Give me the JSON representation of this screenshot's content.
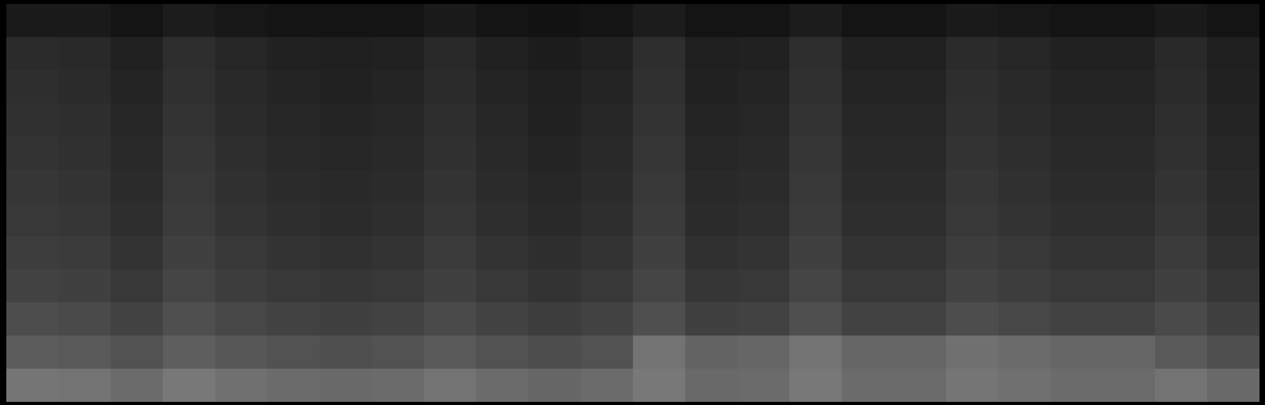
{
  "chart_data": {
    "type": "heatmap",
    "tick_labels": false,
    "zlim": [
      0,
      1
    ],
    "cells": [
      [
        0.1,
        0.1,
        0.08,
        0.11,
        0.09,
        0.08,
        0.08,
        0.08,
        0.1,
        0.08,
        0.07,
        0.08,
        0.11,
        0.08,
        0.08,
        0.11,
        0.08,
        0.08,
        0.1,
        0.09,
        0.08,
        0.08,
        0.1,
        0.08
      ],
      [
        0.17,
        0.16,
        0.13,
        0.18,
        0.15,
        0.13,
        0.12,
        0.13,
        0.16,
        0.13,
        0.11,
        0.13,
        0.18,
        0.12,
        0.13,
        0.18,
        0.13,
        0.13,
        0.17,
        0.15,
        0.13,
        0.13,
        0.16,
        0.12
      ],
      [
        0.18,
        0.17,
        0.14,
        0.19,
        0.16,
        0.14,
        0.13,
        0.14,
        0.17,
        0.14,
        0.12,
        0.14,
        0.19,
        0.13,
        0.14,
        0.19,
        0.14,
        0.14,
        0.18,
        0.16,
        0.14,
        0.14,
        0.17,
        0.13
      ],
      [
        0.19,
        0.18,
        0.15,
        0.2,
        0.17,
        0.15,
        0.14,
        0.15,
        0.18,
        0.15,
        0.13,
        0.15,
        0.2,
        0.14,
        0.15,
        0.2,
        0.15,
        0.15,
        0.19,
        0.17,
        0.15,
        0.15,
        0.18,
        0.14
      ],
      [
        0.2,
        0.19,
        0.16,
        0.21,
        0.18,
        0.16,
        0.15,
        0.16,
        0.19,
        0.16,
        0.14,
        0.16,
        0.21,
        0.15,
        0.16,
        0.21,
        0.16,
        0.16,
        0.2,
        0.18,
        0.16,
        0.16,
        0.19,
        0.15
      ],
      [
        0.21,
        0.2,
        0.17,
        0.22,
        0.19,
        0.17,
        0.16,
        0.17,
        0.2,
        0.17,
        0.15,
        0.17,
        0.22,
        0.16,
        0.17,
        0.22,
        0.17,
        0.17,
        0.21,
        0.19,
        0.17,
        0.17,
        0.2,
        0.16
      ],
      [
        0.22,
        0.21,
        0.18,
        0.23,
        0.2,
        0.18,
        0.17,
        0.18,
        0.21,
        0.18,
        0.16,
        0.18,
        0.23,
        0.17,
        0.18,
        0.23,
        0.18,
        0.18,
        0.22,
        0.2,
        0.18,
        0.18,
        0.21,
        0.17
      ],
      [
        0.24,
        0.23,
        0.2,
        0.25,
        0.22,
        0.2,
        0.19,
        0.2,
        0.23,
        0.2,
        0.18,
        0.2,
        0.25,
        0.19,
        0.2,
        0.25,
        0.2,
        0.2,
        0.24,
        0.22,
        0.2,
        0.2,
        0.23,
        0.19
      ],
      [
        0.26,
        0.25,
        0.22,
        0.27,
        0.24,
        0.22,
        0.21,
        0.22,
        0.25,
        0.22,
        0.2,
        0.22,
        0.27,
        0.21,
        0.22,
        0.27,
        0.22,
        0.22,
        0.26,
        0.24,
        0.22,
        0.22,
        0.25,
        0.21
      ],
      [
        0.3,
        0.29,
        0.26,
        0.31,
        0.28,
        0.26,
        0.25,
        0.26,
        0.29,
        0.26,
        0.24,
        0.26,
        0.31,
        0.25,
        0.26,
        0.31,
        0.26,
        0.26,
        0.3,
        0.28,
        0.26,
        0.26,
        0.29,
        0.25
      ],
      [
        0.36,
        0.35,
        0.32,
        0.37,
        0.34,
        0.32,
        0.31,
        0.32,
        0.35,
        0.32,
        0.3,
        0.32,
        0.45,
        0.39,
        0.4,
        0.45,
        0.4,
        0.4,
        0.44,
        0.42,
        0.4,
        0.4,
        0.35,
        0.31
      ],
      [
        0.46,
        0.45,
        0.42,
        0.47,
        0.44,
        0.42,
        0.41,
        0.42,
        0.45,
        0.42,
        0.4,
        0.42,
        0.47,
        0.41,
        0.42,
        0.47,
        0.42,
        0.42,
        0.46,
        0.44,
        0.42,
        0.42,
        0.45,
        0.41
      ]
    ]
  }
}
